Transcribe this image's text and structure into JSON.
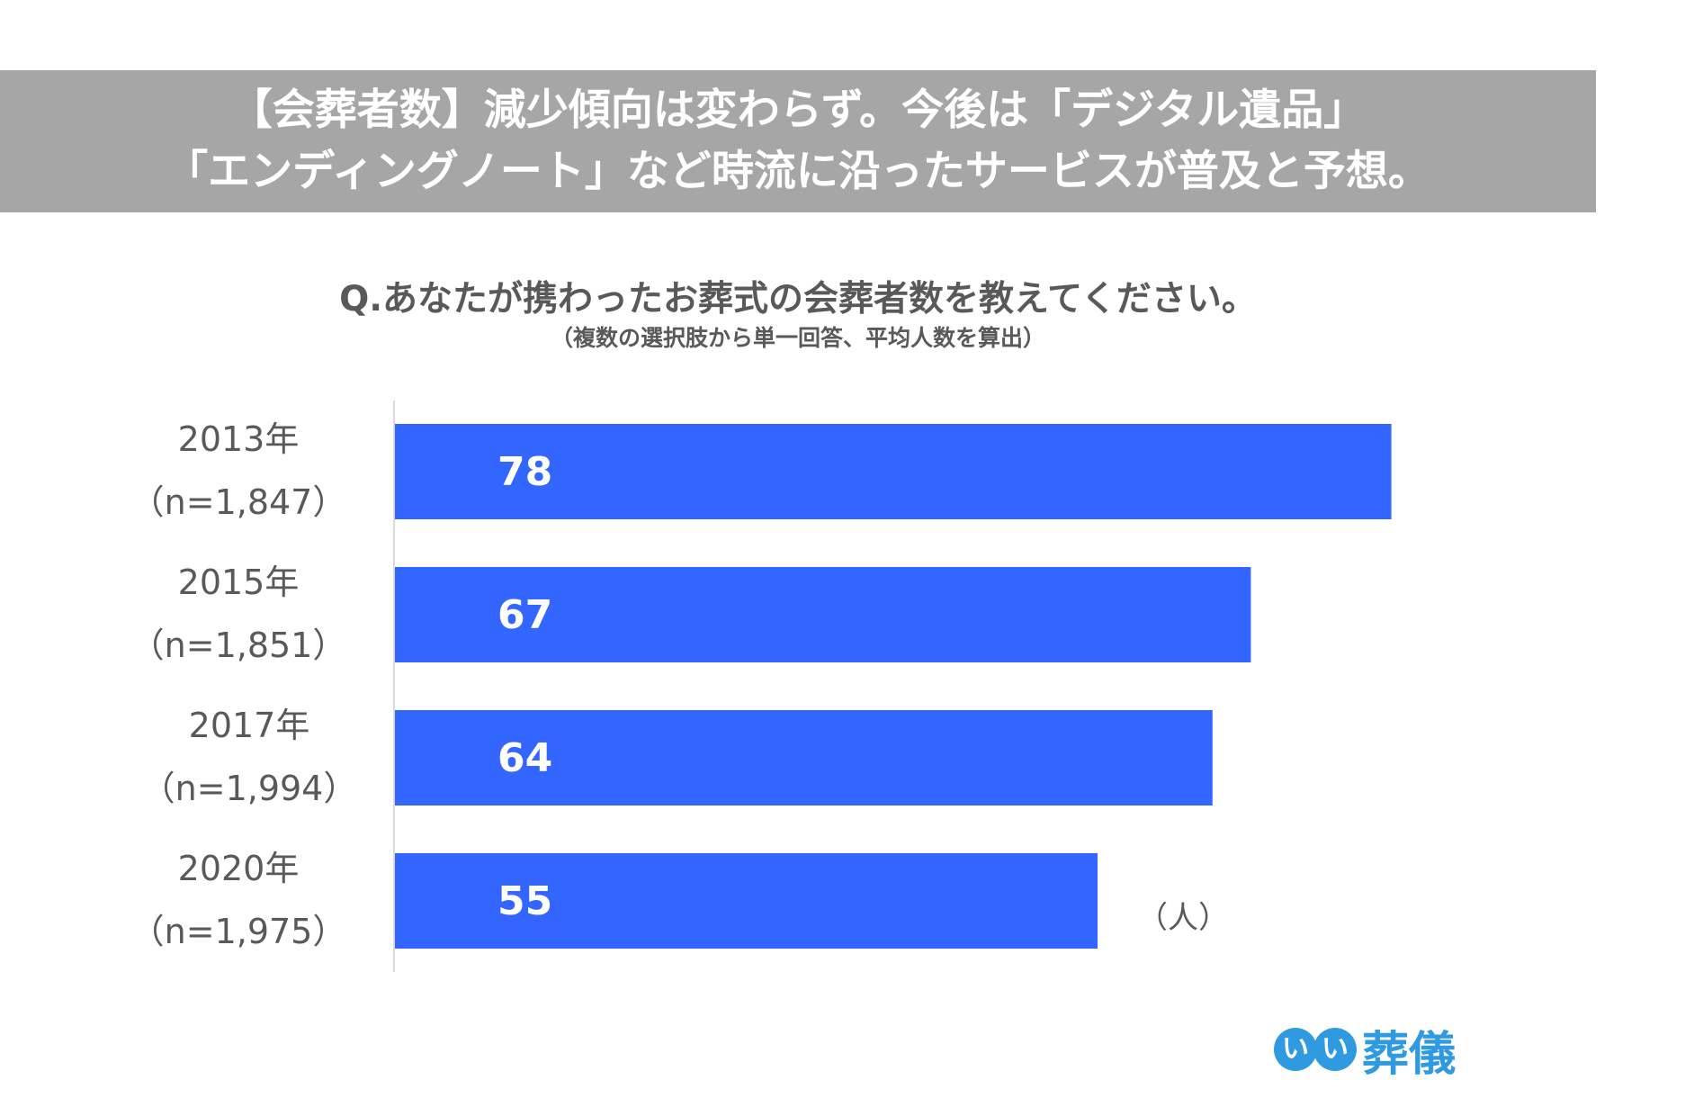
{
  "header": {
    "line1": "【会葬者数】減少傾向は変わらず。今後は「デジタル遺品」",
    "line2": "「エンディングノート」など時流に沿ったサービスが普及と予想。"
  },
  "question": {
    "text": "Q.あなたが携わったお葬式の会葬者数を教えてください。",
    "note": "（複数の選択肢から単一回答、平均人数を算出）"
  },
  "unit_label": "（人）",
  "logo": {
    "badge_char_1": "い",
    "badge_char_2": "い",
    "text": "葬儀"
  },
  "colors": {
    "bar": "#3366ff",
    "banner": "#a6a6a6",
    "text_gray": "#595959",
    "axis": "#d9d9d9",
    "logo": "#2f9ae0"
  },
  "chart_data": {
    "type": "bar",
    "orientation": "horizontal",
    "categories": [
      "2013年",
      "2015年",
      "2017年",
      "2020年"
    ],
    "category_notes": [
      "（n=1,847）",
      "（n=1,851）",
      "（n=1,994）",
      "（n=1,975）"
    ],
    "values": [
      78,
      67,
      64,
      55
    ],
    "xlim": [
      0,
      80
    ],
    "grid": false,
    "legend": "none"
  }
}
